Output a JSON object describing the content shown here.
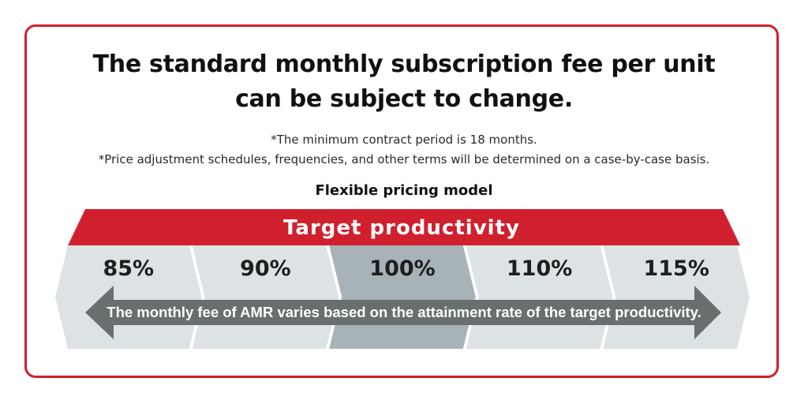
{
  "heading": {
    "line1": "The standard monthly subscription fee per unit",
    "line2": "can be subject to change."
  },
  "notes": [
    "*The minimum contract period is 18 months.",
    "*Price adjustment schedules, frequencies, and other terms will be determined on a case-by-case basis."
  ],
  "diagram": {
    "subtitle": "Flexible pricing model",
    "band_label": "Target productivity",
    "levels": [
      "85%",
      "90%",
      "100%",
      "110%",
      "115%"
    ],
    "highlighted_level": "100%",
    "arrow_label": "The monthly fee of AMR varies based on the attainment rate of the target productivity."
  },
  "colors": {
    "frame": "#d11f2c",
    "band": "#d0202e",
    "chevron": "#dde2e4",
    "chevron_highlight": "#a8b3b7",
    "arrow": "#67706f"
  }
}
